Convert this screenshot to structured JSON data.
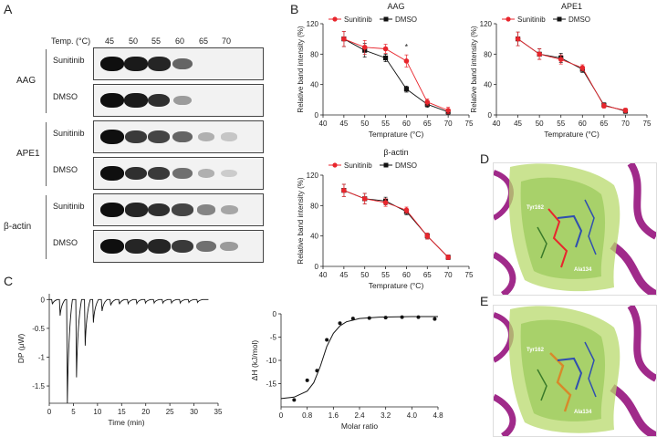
{
  "panels": {
    "a": "A",
    "b": "B",
    "c": "C",
    "d": "D",
    "e": "E"
  },
  "blot": {
    "temp_label": "Temp. (°C)",
    "temps": [
      "45",
      "50",
      "55",
      "60",
      "65",
      "70"
    ],
    "groups": [
      {
        "name": "AAG",
        "rows": [
          {
            "label": "Sunitinib",
            "intensity": [
              1.0,
              0.95,
              0.9,
              0.6,
              0.0,
              0.0
            ]
          },
          {
            "label": "DMSO",
            "intensity": [
              1.0,
              0.95,
              0.85,
              0.35,
              0.0,
              0.0
            ]
          }
        ]
      },
      {
        "name": "APE1",
        "rows": [
          {
            "label": "Sunitinib",
            "intensity": [
              1.0,
              0.8,
              0.75,
              0.6,
              0.25,
              0.15
            ]
          },
          {
            "label": "DMSO",
            "intensity": [
              1.0,
              0.85,
              0.8,
              0.55,
              0.25,
              0.12
            ]
          }
        ]
      },
      {
        "name": "β-actin",
        "rows": [
          {
            "label": "Sunitinib",
            "intensity": [
              1.0,
              0.9,
              0.85,
              0.75,
              0.45,
              0.3
            ]
          },
          {
            "label": "DMSO",
            "intensity": [
              1.0,
              0.9,
              0.9,
              0.8,
              0.55,
              0.35
            ]
          }
        ]
      }
    ]
  },
  "chart_data": [
    {
      "id": "aag",
      "type": "line",
      "title": "AAG",
      "xlabel": "Temprature (°C)",
      "ylabel": "Relative band intensity (%)",
      "xlim": [
        40,
        75
      ],
      "ylim": [
        0,
        120
      ],
      "xticks": [
        "40",
        "45",
        "50",
        "55",
        "60",
        "65",
        "70",
        "75"
      ],
      "yticks": [
        "0",
        "40",
        "80",
        "120"
      ],
      "x": [
        45,
        50,
        55,
        60,
        65,
        70
      ],
      "annotation": "*",
      "series": [
        {
          "name": "Sunitinib",
          "color": "#e8262d",
          "marker": "circle",
          "values": [
            100,
            89,
            87,
            71,
            17,
            6
          ],
          "errors": [
            10,
            9,
            6,
            8,
            4,
            4
          ]
        },
        {
          "name": "DMSO",
          "color": "#111111",
          "marker": "square",
          "values": [
            100,
            85,
            75,
            34,
            14,
            4
          ],
          "errors": [
            10,
            9,
            5,
            4,
            4,
            3
          ]
        }
      ]
    },
    {
      "id": "ape1",
      "type": "line",
      "title": "APE1",
      "xlabel": "Temprature (°C)",
      "ylabel": "Relative band intensity (%)",
      "xlim": [
        40,
        75
      ],
      "ylim": [
        0,
        120
      ],
      "xticks": [
        "40",
        "45",
        "50",
        "55",
        "60",
        "65",
        "70",
        "75"
      ],
      "yticks": [
        "0",
        "40",
        "80",
        "120"
      ],
      "x": [
        45,
        50,
        55,
        60,
        65,
        70
      ],
      "series": [
        {
          "name": "Sunitinib",
          "color": "#e8262d",
          "marker": "circle",
          "values": [
            100,
            80,
            73,
            62,
            12,
            6
          ],
          "errors": [
            9,
            7,
            6,
            4,
            3,
            3
          ]
        },
        {
          "name": "DMSO",
          "color": "#111111",
          "marker": "square",
          "values": [
            100,
            80,
            75,
            60,
            13,
            5
          ],
          "errors": [
            9,
            7,
            6,
            4,
            3,
            3
          ]
        }
      ]
    },
    {
      "id": "actin",
      "type": "line",
      "title": "β-actin",
      "xlabel": "Temprature (°C)",
      "ylabel": "Relative band intensity (%)",
      "xlim": [
        40,
        75
      ],
      "ylim": [
        0,
        120
      ],
      "xticks": [
        "40",
        "45",
        "50",
        "55",
        "60",
        "65",
        "70",
        "75"
      ],
      "yticks": [
        "0",
        "40",
        "80",
        "120"
      ],
      "x": [
        45,
        50,
        55,
        60,
        65,
        70
      ],
      "series": [
        {
          "name": "Sunitinib",
          "color": "#e8262d",
          "marker": "circle",
          "values": [
            100,
            89,
            84,
            74,
            40,
            12
          ],
          "errors": [
            8,
            7,
            5,
            4,
            4,
            3
          ]
        },
        {
          "name": "DMSO",
          "color": "#111111",
          "marker": "square",
          "values": [
            100,
            89,
            86,
            72,
            40,
            12
          ],
          "errors": [
            8,
            7,
            5,
            4,
            4,
            3
          ]
        }
      ]
    },
    {
      "id": "itc_raw",
      "type": "line",
      "xlabel": "Time (min)",
      "ylabel": "DP (μW)",
      "xlim": [
        0,
        35
      ],
      "ylim": [
        -1.8,
        0.1
      ],
      "xticks": [
        "0",
        "5",
        "10",
        "15",
        "20",
        "25",
        "30",
        "35"
      ],
      "yticks": [
        "0",
        "-0.5",
        "-1",
        "-1.5"
      ],
      "injections": [
        {
          "t": 0.5,
          "dp": -0.08
        },
        {
          "t": 2.1,
          "dp": -0.28
        },
        {
          "t": 3.6,
          "dp": -1.8
        },
        {
          "t": 5.5,
          "dp": -1.35
        },
        {
          "t": 7.3,
          "dp": -0.8
        },
        {
          "t": 9.0,
          "dp": -0.4
        },
        {
          "t": 10.8,
          "dp": -0.2
        },
        {
          "t": 12.6,
          "dp": -0.1
        },
        {
          "t": 14.4,
          "dp": -0.08
        },
        {
          "t": 16.2,
          "dp": -0.07
        },
        {
          "t": 18.0,
          "dp": -0.07
        },
        {
          "t": 19.8,
          "dp": -0.06
        },
        {
          "t": 21.6,
          "dp": -0.06
        },
        {
          "t": 23.4,
          "dp": -0.06
        },
        {
          "t": 25.2,
          "dp": -0.06
        },
        {
          "t": 27.0,
          "dp": -0.06
        },
        {
          "t": 28.8,
          "dp": -0.05
        },
        {
          "t": 30.6,
          "dp": -0.05
        }
      ]
    },
    {
      "id": "itc_fit",
      "type": "scatter",
      "xlabel": "Molar ratio",
      "ylabel": "ΔH (kJ/mol)",
      "xlim": [
        0,
        4.8
      ],
      "ylim": [
        -20,
        0
      ],
      "xticks": [
        "0",
        "0.8",
        "1.6",
        "2.4",
        "3.2",
        "4.0",
        "4.8"
      ],
      "yticks": [
        "0",
        "-5",
        "-10",
        "-15"
      ],
      "points": [
        [
          0.4,
          -18.5
        ],
        [
          0.8,
          -14.3
        ],
        [
          1.1,
          -12.2
        ],
        [
          1.4,
          -5.6
        ],
        [
          1.8,
          -2.0
        ],
        [
          2.2,
          -1.0
        ],
        [
          2.7,
          -0.9
        ],
        [
          3.2,
          -0.8
        ],
        [
          3.7,
          -0.7
        ],
        [
          4.2,
          -0.7
        ],
        [
          4.7,
          -1.1
        ]
      ],
      "fit": [
        [
          0.0,
          -18.2
        ],
        [
          0.4,
          -17.9
        ],
        [
          0.8,
          -16.6
        ],
        [
          1.0,
          -14.8
        ],
        [
          1.2,
          -11.3
        ],
        [
          1.4,
          -7.0
        ],
        [
          1.6,
          -4.2
        ],
        [
          1.8,
          -2.6
        ],
        [
          2.0,
          -1.7
        ],
        [
          2.4,
          -1.0
        ],
        [
          3.0,
          -0.7
        ],
        [
          4.0,
          -0.6
        ],
        [
          4.8,
          -0.6
        ]
      ]
    }
  ],
  "structures": {
    "d_labels": [
      "Tyr162",
      "Ala134"
    ],
    "e_labels": [
      "Tyr162",
      "Ala134"
    ]
  }
}
